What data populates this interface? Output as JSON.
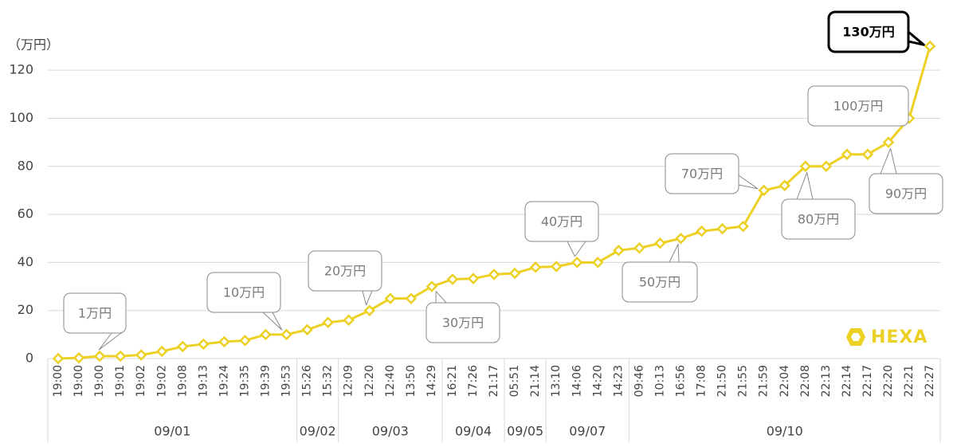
{
  "chart_data": {
    "type": "line",
    "y_axis_label": "（万円）",
    "category_groups": [
      {
        "label": "09/01",
        "categories": [
          "19:00",
          "19:00",
          "19:00",
          "19:01",
          "19:02",
          "19:02",
          "19:08",
          "19:13",
          "19:24",
          "19:35",
          "19:39",
          "19:53"
        ]
      },
      {
        "label": "09/02",
        "categories": [
          "15:26",
          "15:32"
        ]
      },
      {
        "label": "09/03",
        "categories": [
          "12:09",
          "12:20",
          "12:40",
          "13:50",
          "14:29"
        ]
      },
      {
        "label": "09/04",
        "categories": [
          "16:21",
          "17:26",
          "21:17"
        ]
      },
      {
        "label": "09/05",
        "categories": [
          "05:51",
          "21:14"
        ]
      },
      {
        "label": "09/07",
        "categories": [
          "13:10",
          "14:06",
          "14:20",
          "14:23"
        ]
      },
      {
        "label": "09/10",
        "categories": [
          "09:46",
          "10:13",
          "16:56",
          "17:08",
          "21:50",
          "21:55",
          "21:59",
          "22:04",
          "22:08",
          "22:13",
          "22:14",
          "22:17",
          "22:20",
          "22:21",
          "22:27"
        ]
      }
    ],
    "values": [
      0,
      0.3,
      1,
      1,
      1.5,
      3,
      5,
      6,
      7,
      7.5,
      10,
      10,
      12,
      15,
      16,
      20,
      25,
      25,
      30,
      33,
      33.3,
      35,
      35.5,
      38,
      38.3,
      40,
      40,
      45,
      46,
      48,
      50,
      53,
      54,
      55,
      70,
      72,
      80,
      80,
      85,
      85,
      90,
      100,
      130
    ],
    "color": "#ecd024",
    "ylim": [
      0,
      130
    ],
    "yticks": [
      0,
      20,
      40,
      60,
      80,
      100,
      120
    ],
    "grid": true,
    "annotations": [
      "1万円",
      "10万円",
      "20万円",
      "30万円",
      "40万円",
      "50万円",
      "70万円",
      "80万円",
      "90万円",
      "100万円",
      "130万円"
    ],
    "watermark": "HEXA"
  }
}
